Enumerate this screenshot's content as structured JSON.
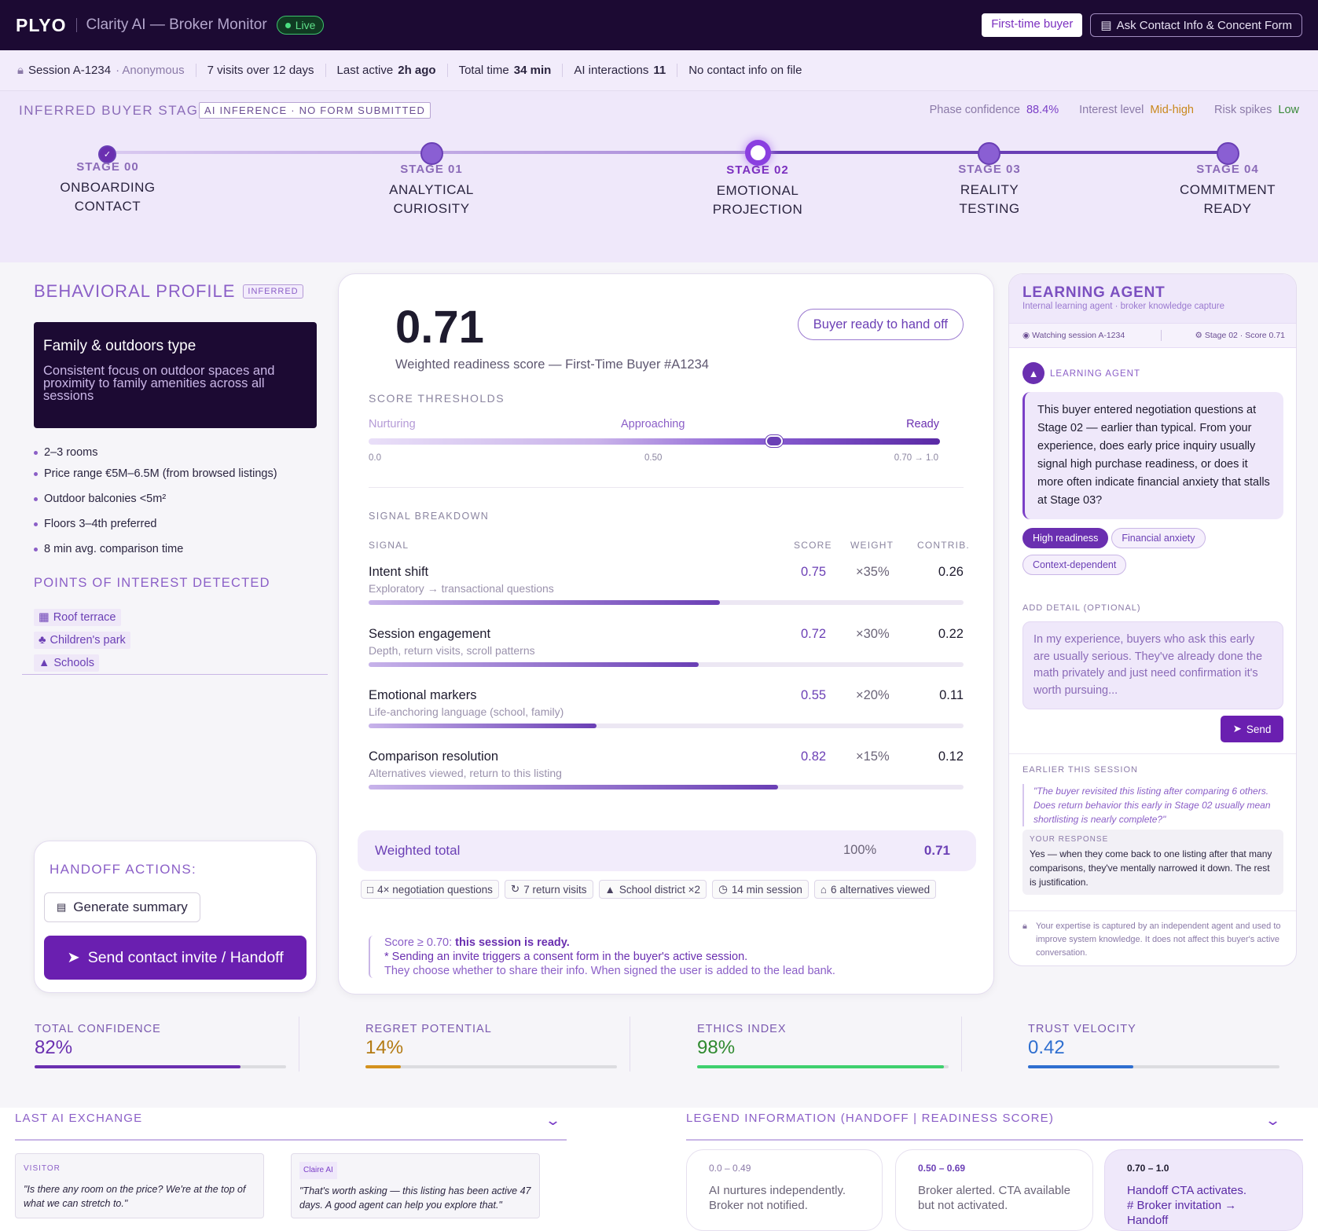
{
  "topbar": {
    "logo": "PLYO",
    "title": "Clarity AI — Broker Monitor",
    "live": "Live",
    "buyer_tag": "First-time buyer",
    "ask_button": "Ask Contact Info & Concent Form"
  },
  "session": {
    "id": "Session A-1234",
    "anon": "· Anonymous",
    "visits": "7 visits over 12 days",
    "last_active_label": "Last active",
    "last_active": "2h ago",
    "total_time_label": "Total time",
    "total_time": "34 min",
    "ai_label": "AI interactions",
    "ai_count": "11",
    "contact": "No contact info on file"
  },
  "stage_header": {
    "title": "INFERRED BUYER STAGE",
    "badge": "AI INFERENCE · NO FORM SUBMITTED",
    "phase_label": "Phase confidence",
    "phase_value": "88.4%",
    "interest_label": "Interest level",
    "interest_value": "Mid-high",
    "risk_label": "Risk spikes",
    "risk_value": "Low"
  },
  "stages": [
    {
      "num": "STAGE 00",
      "name1": "ONBOARDING",
      "name2": "CONTACT"
    },
    {
      "num": "STAGE 01",
      "name1": "ANALYTICAL",
      "name2": "CURIOSITY"
    },
    {
      "num": "STAGE 02",
      "name1": "EMOTIONAL",
      "name2": "PROJECTION"
    },
    {
      "num": "STAGE 03",
      "name1": "REALITY",
      "name2": "TESTING"
    },
    {
      "num": "STAGE 04",
      "name1": "COMMITMENT",
      "name2": "READY"
    }
  ],
  "profile": {
    "title": "BEHAVIORAL PROFILE",
    "badge": "INFERRED",
    "type_title": "Family & outdoors type",
    "type_desc": "Consistent focus on outdoor spaces and proximity to family amenities across all sessions",
    "bullets": [
      "2–3 rooms",
      "Price range €5M–6.5M (from browsed listings)",
      "Outdoor balconies <5m²",
      "Floors 3–4th preferred",
      "8 min avg. comparison time"
    ],
    "poi_title": "POINTS OF INTEREST DETECTED",
    "poi": [
      "Roof terrace",
      "Children's park",
      "Schools"
    ]
  },
  "handoff": {
    "title": "HANDOFF ACTIONS:",
    "summary": "Generate summary",
    "send": "Send contact invite / Handoff"
  },
  "score": {
    "value": "0.71",
    "label": "Weighted readiness score —  First-Time Buyer #A1234",
    "ready_button": "Buyer ready to hand off",
    "thresholds_title": "SCORE THRESHOLDS",
    "t_nurturing": "Nurturing",
    "t_approaching": "Approaching",
    "t_ready": "Ready",
    "tick0": "0.0",
    "tick1": "0.50",
    "tick2": "0.70 → 1.0",
    "marker": 0.71,
    "breakdown_title": "SIGNAL BREAKDOWN",
    "col_signal": "SIGNAL",
    "col_score": "SCORE",
    "col_weight": "WEIGHT",
    "col_contrib": "CONTRIB.",
    "signals": [
      {
        "name": "Intent shift",
        "sub": "Exploratory → transactional questions",
        "score": "0.75",
        "weight": "×35%",
        "contrib": "0.26",
        "fill": 0.59
      },
      {
        "name": "Session engagement",
        "sub": "Depth, return visits, scroll patterns",
        "score": "0.72",
        "weight": "×30%",
        "contrib": "0.22",
        "fill": 0.555
      },
      {
        "name": "Emotional markers",
        "sub": "Life-anchoring language (school, family)",
        "score": "0.55",
        "weight": "×20%",
        "contrib": "0.11",
        "fill": 0.383
      },
      {
        "name": "Comparison resolution",
        "sub": "Alternatives viewed, return to this listing",
        "score": "0.82",
        "weight": "×15%",
        "contrib": "0.12",
        "fill": 0.688
      }
    ],
    "total_label": "Weighted total",
    "total_weight": "100%",
    "total_value": "0.71",
    "chips": [
      "4× negotiation questions",
      "7 return visits",
      "School district ×2",
      "14 min session",
      "6 alternatives viewed"
    ],
    "note1a": "Score ≥ 0.70: ",
    "note1b": "this session is ready.",
    "note2": "* Sending an invite triggers a consent form in the buyer's active session.",
    "note3": "They choose whether to share their info. When signed the user is added to the lead bank."
  },
  "agent": {
    "title": "LEARNING AGENT",
    "subtitle": "Internal learning agent · broker knowledge capture",
    "watching": "Watching session A-1234",
    "stage_score": "Stage 02 · Score 0.71",
    "label": "LEARNING AGENT",
    "question": "This buyer entered negotiation questions at Stage 02 — earlier than typical. From your experience, does early price inquiry usually signal high purchase readiness, or does it more often indicate financial anxiety that stalls at Stage 03?",
    "pills": [
      "High readiness",
      "Financial anxiety",
      "Context-dependent"
    ],
    "detail_label": "ADD DETAIL (OPTIONAL)",
    "detail_text": "In my experience, buyers who ask this early are usually serious. They've already done the math privately and just need confirmation it's worth pursuing...",
    "send": "Send",
    "earlier_title": "EARLIER THIS SESSION",
    "earlier_q": "\"The buyer revisited this listing after comparing 6 others. Does return behavior this early in Stage 02 usually mean shortlisting is nearly complete?\"",
    "response_label": "YOUR RESPONSE",
    "response": "Yes — when they come back to one listing after that many comparisons, they've mentally narrowed it down. The rest is justification.",
    "footer": "Your expertise is captured by an independent agent and used to improve system knowledge. It does not affect this buyer's active conversation."
  },
  "metrics": [
    {
      "title": "TOTAL CONFIDENCE",
      "value": "82%",
      "fill": 0.82,
      "color": "#6a2fb0"
    },
    {
      "title": "REGRET POTENTIAL",
      "value": "14%",
      "fill": 0.14,
      "color": "#d4921e"
    },
    {
      "title": "ETHICS INDEX",
      "value": "98%",
      "fill": 0.98,
      "color": "#3fd06e"
    },
    {
      "title": "TRUST VELOCITY",
      "value": "0.42",
      "fill": 0.42,
      "color": "#2f6fd0"
    }
  ],
  "last_exchange": {
    "title": "LAST AI EXCHANGE",
    "visitor_label": "VISITOR",
    "visitor_text": "\"Is there any room on the price? We're at the top of what we can stretch to.\"",
    "ai_label": "Claire AI",
    "ai_text": "\"That's worth asking — this listing has been active 47 days. A good agent can help you explore that.\""
  },
  "legend": {
    "title": "LEGEND INFORMATION (HANDOFF | READINESS  SCORE)",
    "cards": [
      {
        "range": "0.0 – 0.49",
        "l1": "AI nurtures independently.",
        "l2": "Broker not notified."
      },
      {
        "range": "0.50 – 0.69",
        "l1": "Broker alerted. CTA available",
        "l2": "but not activated."
      },
      {
        "range": "0.70 – 1.0",
        "l1": "Handoff CTA activates.",
        "l2": "# Broker invitation → Handoff"
      }
    ]
  }
}
